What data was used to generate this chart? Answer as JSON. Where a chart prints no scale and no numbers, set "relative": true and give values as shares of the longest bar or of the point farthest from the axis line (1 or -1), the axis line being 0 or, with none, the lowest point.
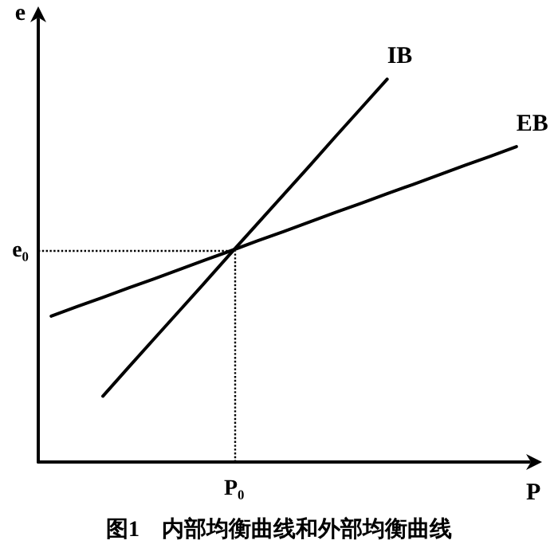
{
  "chart_data": {
    "type": "line",
    "title": "图1　内部均衡曲线和外部均衡曲线",
    "xlabel": "P",
    "ylabel": "e",
    "relative": true,
    "categories": [
      null,
      null,
      null,
      null,
      null,
      null,
      null,
      null,
      null,
      null,
      null,
      null,
      null,
      null,
      null,
      null,
      null,
      null,
      null
    ],
    "series": [
      {
        "name": "IB",
        "color": "#000000",
        "values": [
          null,
          null,
          0.172,
          0.248,
          0.323,
          0.398,
          0.473,
          0.549,
          0.624,
          0.699,
          0.774,
          0.85,
          0.925,
          1,
          null,
          null,
          null,
          null,
          null
        ]
      },
      {
        "name": "EB",
        "color": "#000000",
        "values": [
          0.381,
          0.406,
          0.43,
          0.455,
          0.479,
          0.504,
          0.529,
          0.553,
          0.578,
          0.602,
          0.627,
          0.652,
          0.676,
          0.701,
          0.725,
          0.75,
          0.775,
          0.799,
          0.824
        ]
      }
    ],
    "ref_lines": [
      {
        "axis": "x",
        "label": "P₀",
        "color": "#000000",
        "line_style": "dotted"
      },
      {
        "axis": "y",
        "value": 0.551,
        "label": "e₀",
        "color": "#000000",
        "line_style": "dotted"
      }
    ],
    "legend": false,
    "marker": "none",
    "line_style": "solid"
  }
}
